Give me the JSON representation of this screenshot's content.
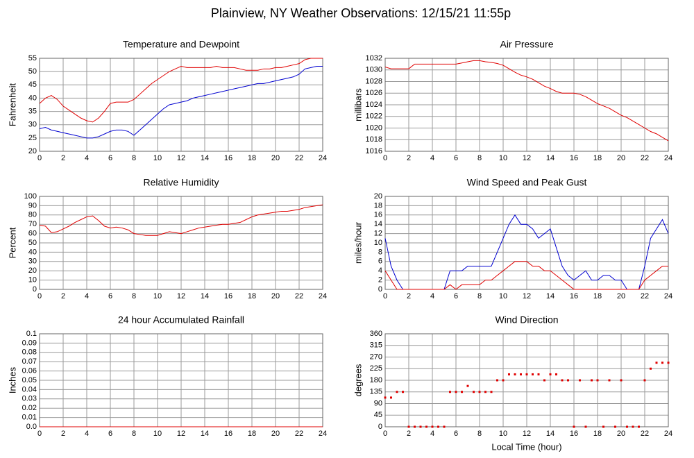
{
  "title": "Plainview, NY Weather Observations: 12/15/21 11:55p",
  "chart_data": [
    {
      "type": "line",
      "title": "Temperature and Dewpoint",
      "ylabel": "Fahrenheit",
      "x": [
        0,
        0.5,
        1,
        1.5,
        2,
        2.5,
        3,
        3.5,
        4,
        4.5,
        5,
        5.5,
        6,
        6.5,
        7,
        7.5,
        8,
        8.5,
        9,
        9.5,
        10,
        10.5,
        11,
        11.5,
        12,
        12.5,
        13,
        13.5,
        14,
        14.5,
        15,
        15.5,
        16,
        16.5,
        17,
        17.5,
        18,
        18.5,
        19,
        19.5,
        20,
        20.5,
        21,
        21.5,
        22,
        22.5,
        23,
        23.5,
        24
      ],
      "series": [
        {
          "color": "#e00000",
          "values": [
            38,
            40,
            41,
            39.5,
            37,
            35.5,
            34,
            32.5,
            31.5,
            31,
            32.5,
            35,
            38,
            38.5,
            38.5,
            38.5,
            39.5,
            41.5,
            43.5,
            45.5,
            47,
            48.5,
            50,
            51,
            52,
            51.5,
            51.5,
            51.5,
            51.5,
            51.5,
            52,
            51.5,
            51.5,
            51.5,
            51,
            50.5,
            50.5,
            50.5,
            51,
            51,
            51.5,
            51.5,
            52,
            52.5,
            53,
            54.5,
            55,
            55,
            55
          ]
        },
        {
          "color": "#0000d0",
          "values": [
            28.5,
            29,
            28,
            27.5,
            27,
            26.5,
            26,
            25.5,
            25,
            25,
            25.5,
            26.5,
            27.5,
            28,
            28,
            27.5,
            26,
            28,
            30,
            32,
            34,
            36,
            37.5,
            38,
            38.5,
            39,
            40,
            40.5,
            41,
            41.5,
            42,
            42.5,
            43,
            43.5,
            44,
            44.5,
            45,
            45.5,
            45.5,
            46,
            46.5,
            47,
            47.5,
            48,
            49,
            51,
            51.5,
            52,
            52
          ]
        }
      ],
      "xlim": [
        0,
        24
      ],
      "xticks": [
        0,
        2,
        4,
        6,
        8,
        10,
        12,
        14,
        16,
        18,
        20,
        22,
        24
      ],
      "ylim": [
        20,
        55
      ],
      "yticks": [
        20,
        25,
        30,
        35,
        40,
        45,
        50,
        55
      ],
      "grid": true
    },
    {
      "type": "line",
      "title": "Air Pressure",
      "ylabel": "millibars",
      "x": [
        0,
        0.5,
        1,
        1.5,
        2,
        2.5,
        3,
        3.5,
        4,
        4.5,
        5,
        5.5,
        6,
        6.5,
        7,
        7.5,
        8,
        8.5,
        9,
        9.5,
        10,
        10.5,
        11,
        11.5,
        12,
        12.5,
        13,
        13.5,
        14,
        14.5,
        15,
        15.5,
        16,
        16.5,
        17,
        17.5,
        18,
        18.5,
        19,
        19.5,
        20,
        20.5,
        21,
        21.5,
        22,
        22.5,
        23,
        23.5,
        24
      ],
      "series": [
        {
          "color": "#e00000",
          "values": [
            1030.5,
            1030.2,
            1030.2,
            1030.2,
            1030.2,
            1031,
            1031,
            1031,
            1031,
            1031,
            1031,
            1031,
            1031,
            1031.2,
            1031.4,
            1031.6,
            1031.6,
            1031.4,
            1031.3,
            1031.1,
            1030.8,
            1030.2,
            1029.6,
            1029.1,
            1028.8,
            1028.4,
            1027.8,
            1027.2,
            1026.8,
            1026.3,
            1026,
            1026,
            1026,
            1025.8,
            1025.4,
            1024.8,
            1024.2,
            1023.8,
            1023.4,
            1022.8,
            1022.2,
            1021.8,
            1021.2,
            1020.6,
            1020,
            1019.4,
            1019,
            1018.4,
            1017.8
          ]
        }
      ],
      "xlim": [
        0,
        24
      ],
      "xticks": [
        0,
        2,
        4,
        6,
        8,
        10,
        12,
        14,
        16,
        18,
        20,
        22,
        24
      ],
      "ylim": [
        1016,
        1032
      ],
      "yticks": [
        1016,
        1018,
        1020,
        1022,
        1024,
        1026,
        1028,
        1030,
        1032
      ],
      "grid": true
    },
    {
      "type": "line",
      "title": "Relative Humidity",
      "ylabel": "Percent",
      "x": [
        0,
        0.5,
        1,
        1.5,
        2,
        2.5,
        3,
        3.5,
        4,
        4.5,
        5,
        5.5,
        6,
        6.5,
        7,
        7.5,
        8,
        8.5,
        9,
        9.5,
        10,
        10.5,
        11,
        11.5,
        12,
        12.5,
        13,
        13.5,
        14,
        14.5,
        15,
        15.5,
        16,
        16.5,
        17,
        17.5,
        18,
        18.5,
        19,
        19.5,
        20,
        20.5,
        21,
        21.5,
        22,
        22.5,
        23,
        23.5,
        24
      ],
      "series": [
        {
          "color": "#e00000",
          "values": [
            69,
            68,
            61,
            62,
            65,
            68,
            72,
            75,
            78,
            79,
            74,
            68,
            66,
            67,
            66,
            64,
            60,
            59,
            58,
            58,
            58,
            60,
            62,
            61,
            60,
            62,
            64,
            66,
            67,
            68,
            69,
            70,
            70,
            71,
            72,
            75,
            78,
            80,
            81,
            82,
            83,
            84,
            84,
            85,
            86,
            88,
            89,
            90,
            91
          ]
        }
      ],
      "xlim": [
        0,
        24
      ],
      "xticks": [
        0,
        2,
        4,
        6,
        8,
        10,
        12,
        14,
        16,
        18,
        20,
        22,
        24
      ],
      "ylim": [
        0,
        100
      ],
      "yticks": [
        0,
        10,
        20,
        30,
        40,
        50,
        60,
        70,
        80,
        90,
        100
      ],
      "grid": true
    },
    {
      "type": "line",
      "title": "Wind Speed and Peak Gust",
      "ylabel": "miles/hour",
      "x": [
        0,
        0.5,
        1,
        1.5,
        2,
        2.5,
        3,
        3.5,
        4,
        4.5,
        5,
        5.5,
        6,
        6.5,
        7,
        7.5,
        8,
        8.5,
        9,
        9.5,
        10,
        10.5,
        11,
        11.5,
        12,
        12.5,
        13,
        13.5,
        14,
        14.5,
        15,
        15.5,
        16,
        16.5,
        17,
        17.5,
        18,
        18.5,
        19,
        19.5,
        20,
        20.5,
        21,
        21.5,
        22,
        22.5,
        23,
        23.5,
        24
      ],
      "series": [
        {
          "color": "#0000d0",
          "values": [
            11,
            5,
            2,
            0,
            0,
            0,
            0,
            0,
            0,
            0,
            0,
            4,
            4,
            4,
            5,
            5,
            5,
            5,
            5,
            8,
            11,
            14,
            16,
            14,
            14,
            13,
            11,
            12,
            13,
            9,
            5,
            3,
            2,
            3,
            4,
            2,
            2,
            3,
            3,
            2,
            2,
            0,
            0,
            0,
            5,
            11,
            13,
            15,
            12
          ]
        },
        {
          "color": "#e00000",
          "values": [
            4,
            2,
            0,
            0,
            0,
            0,
            0,
            0,
            0,
            0,
            0,
            1,
            0,
            1,
            1,
            1,
            1,
            2,
            2,
            3,
            4,
            5,
            6,
            6,
            6,
            5,
            5,
            4,
            4,
            3,
            2,
            1,
            0,
            0,
            0,
            0,
            0,
            0,
            0,
            0,
            0,
            0,
            0,
            0,
            2,
            3,
            4,
            5,
            5
          ]
        }
      ],
      "xlim": [
        0,
        24
      ],
      "xticks": [
        0,
        2,
        4,
        6,
        8,
        10,
        12,
        14,
        16,
        18,
        20,
        22,
        24
      ],
      "ylim": [
        0,
        20
      ],
      "yticks": [
        0,
        2,
        4,
        6,
        8,
        10,
        12,
        14,
        16,
        18,
        20
      ],
      "grid": true
    },
    {
      "type": "line",
      "title": "24 hour Accumulated Rainfall",
      "ylabel": "Inches",
      "x": [
        0,
        24
      ],
      "series": [
        {
          "color": "#e00000",
          "values": [
            0,
            0
          ]
        }
      ],
      "xlim": [
        0,
        24
      ],
      "xticks": [
        0,
        2,
        4,
        6,
        8,
        10,
        12,
        14,
        16,
        18,
        20,
        22,
        24
      ],
      "ylim": [
        0,
        0.1
      ],
      "yticks": [
        {
          "value": 0,
          "label": "0.0"
        },
        0.01,
        0.02,
        0.03,
        0.04,
        0.05,
        0.06,
        0.07,
        0.08,
        0.09,
        0.1
      ],
      "grid": true
    },
    {
      "type": "scatter",
      "title": "Wind Direction",
      "ylabel": "degrees",
      "xlabel": "Local Time (hour)",
      "x": [
        0,
        0.5,
        1,
        1.5,
        2,
        2.5,
        3,
        3.5,
        4,
        4.5,
        5,
        5.5,
        6,
        6.5,
        7,
        7.5,
        8,
        8.5,
        9,
        9.5,
        10,
        10.5,
        11,
        11.5,
        12,
        12.5,
        13,
        13.5,
        14,
        14.5,
        15,
        15.5,
        16,
        16.5,
        17,
        17.5,
        18,
        18.5,
        19,
        19.5,
        20,
        20.5,
        21,
        21.5,
        22,
        22.5,
        23,
        23.5,
        24
      ],
      "series": [
        {
          "color": "#e00000",
          "values": [
            113,
            113,
            135,
            135,
            0,
            0,
            0,
            0,
            0,
            0,
            0,
            135,
            135,
            135,
            158,
            135,
            135,
            135,
            135,
            180,
            180,
            203,
            203,
            203,
            203,
            203,
            203,
            180,
            203,
            203,
            180,
            180,
            0,
            180,
            0,
            180,
            180,
            0,
            180,
            0,
            180,
            0,
            0,
            0,
            180,
            225,
            248,
            248,
            248
          ]
        }
      ],
      "xlim": [
        0,
        24
      ],
      "xticks": [
        0,
        2,
        4,
        6,
        8,
        10,
        12,
        14,
        16,
        18,
        20,
        22,
        24
      ],
      "ylim": [
        0,
        360
      ],
      "yticks": [
        0,
        45,
        90,
        135,
        180,
        225,
        270,
        315,
        360
      ],
      "grid": true
    }
  ]
}
